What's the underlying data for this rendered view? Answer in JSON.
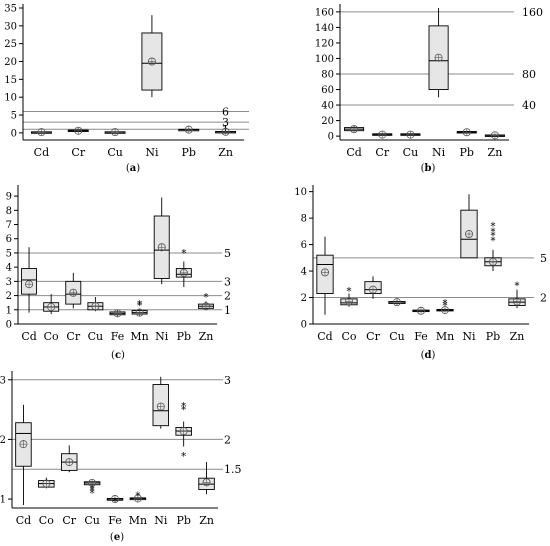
{
  "chart_data": [
    {
      "type": "box",
      "caption": "(a)",
      "categories": [
        "Cd",
        "Cr",
        "Cu",
        "Ni",
        "Pb",
        "Zn"
      ],
      "ylim": [
        -2,
        35
      ],
      "yticks": [
        0,
        5,
        10,
        15,
        20,
        25,
        30,
        35
      ],
      "reference_lines": [
        6,
        3,
        1
      ],
      "reference_labels": [
        "6",
        "3",
        "1"
      ],
      "boxes": [
        {
          "min": 0.05,
          "q1": 0.1,
          "median": 0.2,
          "q3": 0.3,
          "max": 0.5,
          "mean": 0.2
        },
        {
          "min": 0.2,
          "q1": 0.4,
          "median": 0.6,
          "q3": 0.8,
          "max": 1.2,
          "mean": 0.6
        },
        {
          "min": 0.05,
          "q1": 0.1,
          "median": 0.2,
          "q3": 0.3,
          "max": 0.5,
          "mean": 0.2
        },
        {
          "min": 10,
          "q1": 12,
          "median": 19.5,
          "q3": 28,
          "max": 33,
          "mean": 20
        },
        {
          "min": 0.5,
          "q1": 0.7,
          "median": 0.9,
          "q3": 1.0,
          "max": 1.3,
          "mean": 0.9
        },
        {
          "min": 0.1,
          "q1": 0.2,
          "median": 0.3,
          "q3": 0.4,
          "max": 0.6,
          "mean": 0.3
        }
      ]
    },
    {
      "type": "box",
      "caption": "(b)",
      "categories": [
        "Cd",
        "Cr",
        "Cu",
        "Ni",
        "Pb",
        "Zn"
      ],
      "ylim": [
        -5,
        165
      ],
      "yticks": [
        0,
        20,
        40,
        60,
        80,
        100,
        120,
        140,
        160
      ],
      "reference_lines": [
        160,
        80,
        40
      ],
      "reference_labels": [
        "160",
        "80",
        "40"
      ],
      "boxes": [
        {
          "min": 6,
          "q1": 7,
          "median": 9,
          "q3": 11,
          "max": 14,
          "mean": 9
        },
        {
          "min": 0.5,
          "q1": 1,
          "median": 2,
          "q3": 3,
          "max": 4,
          "mean": 2
        },
        {
          "min": 0.5,
          "q1": 1,
          "median": 2,
          "q3": 3,
          "max": 4,
          "mean": 2
        },
        {
          "min": 50,
          "q1": 60,
          "median": 97,
          "q3": 142,
          "max": 165,
          "mean": 101
        },
        {
          "min": 3,
          "q1": 4,
          "median": 5,
          "q3": 6,
          "max": 7,
          "mean": 5
        },
        {
          "min": 0.3,
          "q1": 0.7,
          "median": 1,
          "q3": 1.5,
          "max": 2.5,
          "mean": 1
        }
      ]
    },
    {
      "type": "box",
      "caption": "(c)",
      "categories": [
        "Cd",
        "Co",
        "Cr",
        "Cu",
        "Fe",
        "Mn",
        "Ni",
        "Pb",
        "Zn"
      ],
      "ylim": [
        0,
        9.5
      ],
      "yticks": [
        0,
        1,
        2,
        3,
        4,
        5,
        6,
        7,
        8,
        9
      ],
      "reference_lines": [
        5,
        3,
        2,
        1
      ],
      "reference_labels": [
        "5",
        "3",
        "2",
        "1"
      ],
      "boxes": [
        {
          "min": 0.8,
          "q1": 2.1,
          "median": 3.1,
          "q3": 3.9,
          "max": 5.4,
          "mean": 2.8
        },
        {
          "min": 0.7,
          "q1": 0.9,
          "median": 1.2,
          "q3": 1.5,
          "max": 2.1,
          "mean": 1.2
        },
        {
          "min": 1.1,
          "q1": 1.4,
          "median": 2.1,
          "q3": 3.0,
          "max": 3.6,
          "mean": 2.2
        },
        {
          "min": 0.9,
          "q1": 1.0,
          "median": 1.25,
          "q3": 1.5,
          "max": 1.9,
          "mean": 1.25
        },
        {
          "min": 0.55,
          "q1": 0.65,
          "median": 0.75,
          "q3": 0.85,
          "max": 0.95,
          "mean": 0.75
        },
        {
          "min": 0.6,
          "q1": 0.7,
          "median": 0.8,
          "q3": 0.95,
          "max": 1.1,
          "mean": 0.8,
          "outliers": [
            1.3,
            1.4
          ]
        },
        {
          "min": 2.8,
          "q1": 3.2,
          "median": 5.2,
          "q3": 7.6,
          "max": 8.9,
          "mean": 5.4
        },
        {
          "min": 2.6,
          "q1": 3.3,
          "median": 3.5,
          "q3": 3.9,
          "max": 4.4,
          "mean": 3.6,
          "outliers": [
            5.0
          ]
        },
        {
          "min": 1.0,
          "q1": 1.1,
          "median": 1.25,
          "q3": 1.4,
          "max": 1.6,
          "mean": 1.25,
          "outliers": [
            1.9
          ]
        }
      ]
    },
    {
      "type": "box",
      "caption": "(d)",
      "categories": [
        "Cd",
        "Co",
        "Cr",
        "Cu",
        "Fe",
        "Mn",
        "Ni",
        "Pb",
        "Zn"
      ],
      "ylim": [
        0,
        10.2
      ],
      "yticks": [
        0,
        2,
        4,
        6,
        8,
        10
      ],
      "reference_lines": [
        5,
        2
      ],
      "reference_labels": [
        "5",
        "2"
      ],
      "boxes": [
        {
          "min": 0.7,
          "q1": 2.3,
          "median": 4.5,
          "q3": 5.2,
          "max": 6.6,
          "mean": 3.9
        },
        {
          "min": 1.3,
          "q1": 1.45,
          "median": 1.6,
          "q3": 1.9,
          "max": 2.3,
          "mean": 1.7,
          "outliers": [
            2.5
          ]
        },
        {
          "min": 1.9,
          "q1": 2.3,
          "median": 2.6,
          "q3": 3.2,
          "max": 3.6,
          "mean": 2.6
        },
        {
          "min": 1.45,
          "q1": 1.55,
          "median": 1.65,
          "q3": 1.7,
          "max": 1.8,
          "mean": 1.65
        },
        {
          "min": 0.9,
          "q1": 0.95,
          "median": 1.0,
          "q3": 1.05,
          "max": 1.1,
          "mean": 1.0
        },
        {
          "min": 0.95,
          "q1": 1.0,
          "median": 1.05,
          "q3": 1.1,
          "max": 1.2,
          "mean": 1.05,
          "outliers": [
            1.4,
            1.6
          ]
        },
        {
          "min": 5.0,
          "q1": 5.0,
          "median": 6.4,
          "q3": 8.6,
          "max": 9.8,
          "mean": 6.8
        },
        {
          "min": 4.0,
          "q1": 4.4,
          "median": 4.7,
          "q3": 5.0,
          "max": 5.6,
          "mean": 4.7,
          "outliers": [
            6.3,
            6.7,
            7.0,
            7.4
          ]
        },
        {
          "min": 1.2,
          "q1": 1.4,
          "median": 1.65,
          "q3": 1.9,
          "max": 2.6,
          "mean": 1.7,
          "outliers": [
            2.9
          ]
        }
      ]
    },
    {
      "type": "box",
      "caption": "(e)",
      "categories": [
        "Cd",
        "Co",
        "Cr",
        "Cu",
        "Fe",
        "Mn",
        "Ni",
        "Pb",
        "Zn"
      ],
      "ylim": [
        0.85,
        3.08
      ],
      "yticks": [
        1,
        2,
        3
      ],
      "reference_lines": [
        3,
        2,
        1.5
      ],
      "reference_labels": [
        "3",
        "2",
        "1.5"
      ],
      "boxes": [
        {
          "min": 0.9,
          "q1": 1.55,
          "median": 2.1,
          "q3": 2.28,
          "max": 2.58,
          "mean": 1.92
        },
        {
          "min": 1.18,
          "q1": 1.2,
          "median": 1.26,
          "q3": 1.31,
          "max": 1.36,
          "mean": 1.26
        },
        {
          "min": 1.45,
          "q1": 1.48,
          "median": 1.62,
          "q3": 1.76,
          "max": 1.9,
          "mean": 1.62
        },
        {
          "min": 1.2,
          "q1": 1.24,
          "median": 1.27,
          "q3": 1.29,
          "max": 1.3,
          "mean": 1.27,
          "outliers": [
            1.1,
            1.14,
            1.18
          ]
        },
        {
          "min": 0.97,
          "q1": 0.98,
          "median": 1.0,
          "q3": 1.01,
          "max": 1.02,
          "mean": 1.0,
          "outliers": [
            0.96
          ]
        },
        {
          "min": 0.98,
          "q1": 0.99,
          "median": 1.01,
          "q3": 1.02,
          "max": 1.03,
          "mean": 1.01,
          "outliers": [
            1.06
          ]
        },
        {
          "min": 2.18,
          "q1": 2.23,
          "median": 2.48,
          "q3": 2.92,
          "max": 3.05,
          "mean": 2.55
        },
        {
          "min": 1.88,
          "q1": 2.07,
          "median": 2.14,
          "q3": 2.2,
          "max": 2.3,
          "mean": 2.14,
          "outliers": [
            1.72,
            2.5,
            2.56
          ]
        },
        {
          "min": 1.08,
          "q1": 1.16,
          "median": 1.25,
          "q3": 1.35,
          "max": 1.62,
          "mean": 1.28
        }
      ]
    }
  ]
}
